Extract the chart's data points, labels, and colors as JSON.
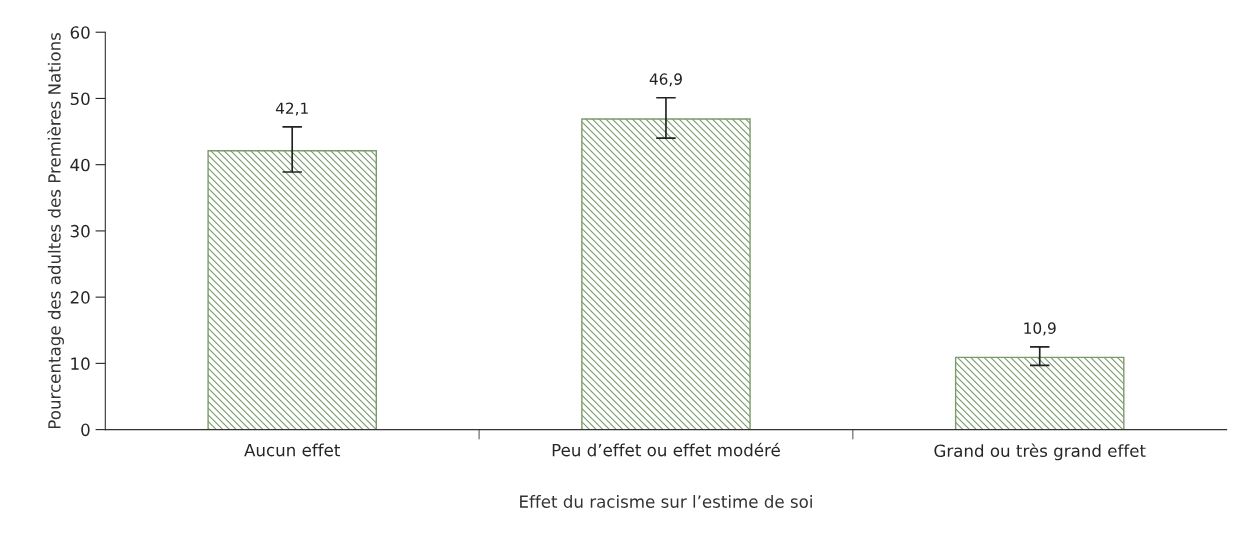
{
  "chart_data": {
    "type": "bar",
    "xlabel": "Effet du racisme sur l’estime de soi",
    "ylabel": "Pourcentage des adultes des Premières Nations",
    "categories": [
      "Aucun effet",
      "Peu d’effet ou effet modéré",
      "Grand ou très grand effet"
    ],
    "values": [
      42.1,
      46.9,
      10.9
    ],
    "value_labels": [
      "42,1",
      "46,9",
      "10,9"
    ],
    "errors": [
      [
        38.9,
        45.7
      ],
      [
        44.0,
        50.1
      ],
      [
        9.7,
        12.5
      ]
    ],
    "color": "#7a9a6a",
    "ylim": [
      0,
      60
    ],
    "yticks": [
      0,
      10,
      20,
      30,
      40,
      50,
      60
    ],
    "grid": false,
    "legend": false
  }
}
